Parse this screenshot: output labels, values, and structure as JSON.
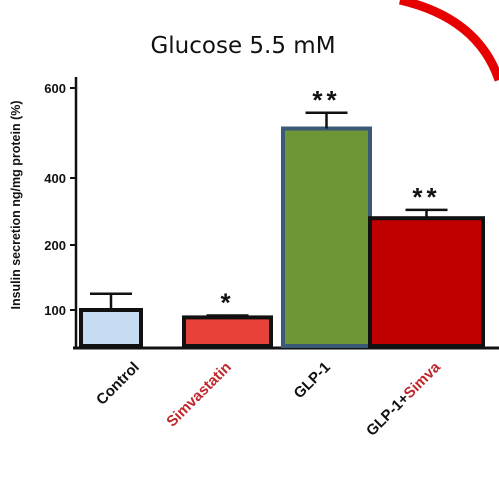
{
  "chart_data": {
    "type": "bar",
    "title": "Glucose 5.5 mM",
    "xlabel": "",
    "ylabel": "Insulin secretion ng/mg protein (%)",
    "y_ticks": [
      "100",
      "200",
      "400",
      "600"
    ],
    "categories": [
      {
        "parts": [
          "Control"
        ],
        "colors": [
          "#111111"
        ]
      },
      {
        "parts": [
          "Simvastatin"
        ],
        "colors": [
          "#c0272d"
        ]
      },
      {
        "parts": [
          "GLP-1"
        ],
        "colors": [
          "#111111"
        ]
      },
      {
        "parts": [
          "GLP-1+",
          "Simva"
        ],
        "colors": [
          "#111111",
          "#c0272d"
        ]
      }
    ],
    "values": [
      100,
      80,
      510,
      280
    ],
    "errors": [
      25,
      5,
      35,
      25
    ],
    "significance": [
      "",
      "*",
      "**",
      "**"
    ],
    "bar_colors": [
      "#c6dcf2",
      "#e8413c",
      "#6f9636",
      "#c00000"
    ],
    "bar_outlines": [
      "#111111",
      "#111111",
      "#3b5a78",
      "#111111"
    ],
    "accent_arc_color": "#e60000",
    "grid": false,
    "legend": "none"
  }
}
